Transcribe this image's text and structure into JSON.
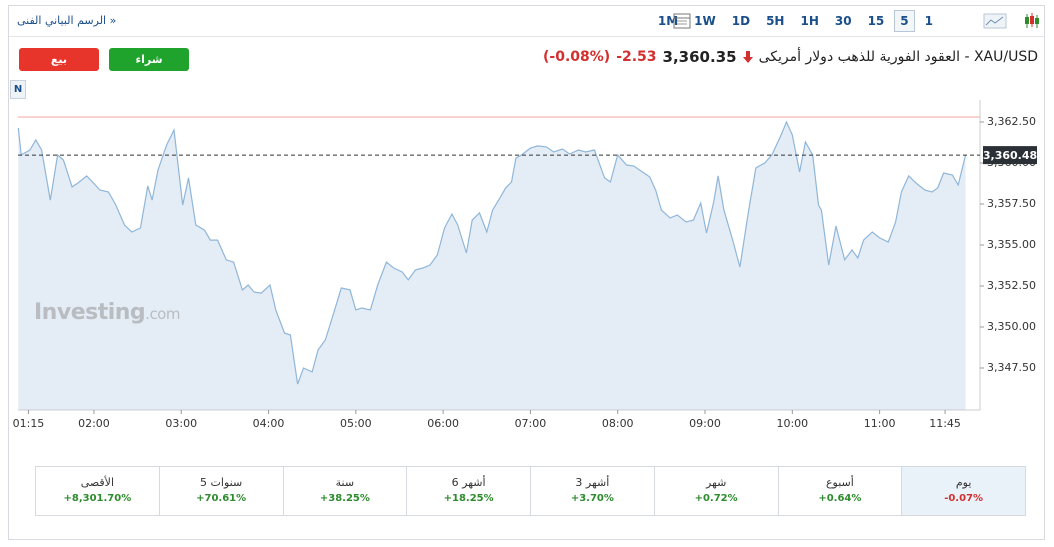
{
  "toolbar": {
    "title": "الرسم البياني الفنى »",
    "intervals": [
      "1M",
      "1W",
      "1D",
      "5H",
      "1H",
      "30",
      "15",
      "5",
      "1"
    ],
    "selected_index": 7
  },
  "header": {
    "instrument": "XAU/USD - العقود الفورية للذهب دولار أمريكى",
    "price": "3,360.35",
    "change": "-2.53",
    "change_pct": "(-0.08%)"
  },
  "buttons": {
    "sell": "بيع",
    "buy": "شراء"
  },
  "watermark": {
    "brand": "Investing",
    "suffix": ".com"
  },
  "marker": "N",
  "performance": [
    {
      "label": "يوم",
      "value": "-0.07%",
      "color": "#d32f2f"
    },
    {
      "label": "أسبوع",
      "value": "+0.64%",
      "color": "#2e8b2e"
    },
    {
      "label": "شهر",
      "value": "+0.72%",
      "color": "#2e8b2e"
    },
    {
      "label": "3 أشهر",
      "value": "+3.70%",
      "color": "#2e8b2e"
    },
    {
      "label": "6 أشهر",
      "value": "+18.25%",
      "color": "#2e8b2e"
    },
    {
      "label": "سنة",
      "value": "+38.25%",
      "color": "#2e8b2e"
    },
    {
      "label": "5 سنوات",
      "value": "+70.61%",
      "color": "#2e8b2e"
    },
    {
      "label": "الأقصى",
      "value": "+8,301.70%",
      "color": "#2e8b2e"
    }
  ],
  "chart_data": {
    "type": "area",
    "color": "#8fb6d9",
    "fill": "#e4edf6",
    "x": [
      68,
      70,
      76,
      80,
      84,
      90,
      95,
      99,
      105,
      109,
      115,
      119,
      124,
      130,
      135,
      141,
      146,
      152,
      157,
      160,
      164,
      170,
      175,
      181,
      185,
      190,
      196,
      200,
      205,
      211,
      216,
      222,
      226,
      230,
      235,
      241,
      245,
      251,
      255,
      260,
      264,
      270,
      274,
      279,
      285,
      290,
      296,
      300,
      304,
      310,
      315,
      321,
      326,
      332,
      336,
      341,
      346,
      351,
      356,
      361,
      366,
      370,
      376,
      380,
      385,
      390,
      394,
      399,
      403,
      407,
      410,
      414,
      420,
      425,
      431,
      436,
      442,
      447,
      453,
      458,
      464,
      471,
      475,
      480,
      486,
      491,
      497,
      502,
      506,
      510,
      516,
      521,
      527,
      532,
      537,
      541,
      546,
      549,
      553,
      559,
      564,
      570,
      575,
      581,
      586,
      592,
      596,
      600,
      605,
      609,
      614,
      618,
      620,
      625,
      630,
      636,
      641,
      645,
      649,
      655,
      660,
      666,
      671,
      675,
      680,
      685,
      691,
      696,
      700,
      704,
      710,
      714,
      719
    ],
    "values": [
      3362.13,
      3360.49,
      3360.79,
      3361.4,
      3360.79,
      3357.74,
      3360.49,
      3360.18,
      3358.54,
      3358.78,
      3359.21,
      3358.84,
      3358.35,
      3358.23,
      3357.44,
      3356.22,
      3355.79,
      3356.04,
      3358.6,
      3357.74,
      3359.57,
      3361.1,
      3362.01,
      3357.44,
      3359.09,
      3356.22,
      3355.91,
      3355.3,
      3355.3,
      3354.09,
      3353.96,
      3352.26,
      3352.56,
      3352.13,
      3352.07,
      3352.56,
      3351.04,
      3349.63,
      3349.51,
      3346.52,
      3347.5,
      3347.26,
      3348.6,
      3349.21,
      3350.91,
      3352.38,
      3352.26,
      3351.04,
      3351.16,
      3351.04,
      3352.56,
      3353.96,
      3353.6,
      3353.35,
      3352.87,
      3353.48,
      3353.6,
      3353.78,
      3354.39,
      3356.04,
      3356.89,
      3356.22,
      3354.51,
      3356.52,
      3356.95,
      3355.79,
      3357.13,
      3357.87,
      3358.48,
      3358.84,
      3360.3,
      3360.49,
      3360.91,
      3361.04,
      3360.98,
      3360.67,
      3360.85,
      3360.55,
      3360.79,
      3360.67,
      3360.79,
      3359.09,
      3358.84,
      3360.49,
      3359.88,
      3359.82,
      3359.45,
      3359.15,
      3358.35,
      3357.13,
      3356.65,
      3356.83,
      3356.4,
      3356.52,
      3357.56,
      3355.73,
      3357.62,
      3359.21,
      3357.13,
      3355.3,
      3353.66,
      3357.13,
      3359.7,
      3360.0,
      3360.49,
      3361.65,
      3362.5,
      3361.71,
      3359.45,
      3361.28,
      3360.49,
      3357.44,
      3357.13,
      3353.78,
      3356.16,
      3354.09,
      3354.7,
      3354.21,
      3355.3,
      3355.79,
      3355.43,
      3355.18,
      3356.4,
      3358.23,
      3359.21,
      3358.78,
      3358.35,
      3358.23,
      3358.48,
      3359.39,
      3359.27,
      3358.66,
      3360.48
    ],
    "xlim": [
      67.8,
      729.0
    ],
    "xticks": [
      {
        "value": 75,
        "label": "01:15"
      },
      {
        "value": 120,
        "label": "02:00"
      },
      {
        "value": 180,
        "label": "03:00"
      },
      {
        "value": 240,
        "label": "04:00"
      },
      {
        "value": 300,
        "label": "05:00"
      },
      {
        "value": 360,
        "label": "06:00"
      },
      {
        "value": 420,
        "label": "07:00"
      },
      {
        "value": 480,
        "label": "08:00"
      },
      {
        "value": 540,
        "label": "09:00"
      },
      {
        "value": 600,
        "label": "10:00"
      },
      {
        "value": 660,
        "label": "11:00"
      },
      {
        "value": 705,
        "label": "11:45"
      }
    ],
    "ylim": [
      3344.94,
      3363.84
    ],
    "yticks": [
      {
        "value": 3347.5,
        "label": "3,347.50"
      },
      {
        "value": 3350,
        "label": "3,350.00"
      },
      {
        "value": 3352.5,
        "label": "3,352.50"
      },
      {
        "value": 3355,
        "label": "3,355.00"
      },
      {
        "value": 3357.5,
        "label": "3,357.50"
      },
      {
        "value": 3360,
        "label": "3,360.00"
      },
      {
        "value": 3362.5,
        "label": "3,362.50"
      }
    ],
    "last_price": {
      "value": 3360.48,
      "label": "3,360.48"
    },
    "reference_line": {
      "value": 3362.8,
      "color": "#f4a7a3"
    }
  }
}
